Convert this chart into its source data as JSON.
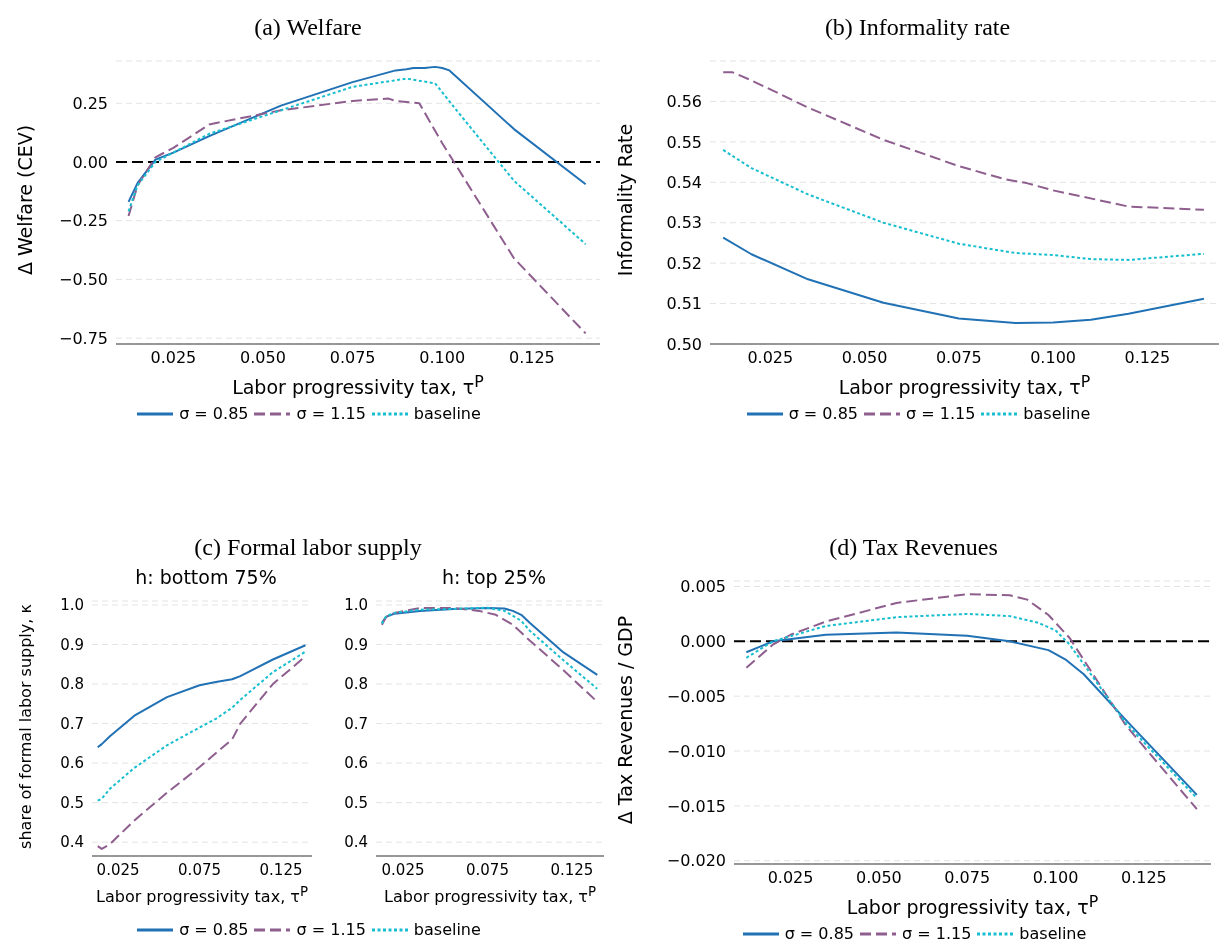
{
  "chart_data": [
    {
      "type": "line",
      "title": "(a) Welfare",
      "xlabel": "Labor progressivity tax, τ$^{P}$",
      "ylabel": "Δ Welfare (CEV)",
      "xlim": [
        0.009,
        0.144
      ],
      "ylim": [
        -0.775,
        0.43
      ],
      "xticks": [
        {
          "value": 0.025,
          "label": "0.025"
        },
        {
          "value": 0.05,
          "label": "0.050"
        },
        {
          "value": 0.075,
          "label": "0.075"
        },
        {
          "value": 0.1,
          "label": "0.100"
        },
        {
          "value": 0.125,
          "label": "0.125"
        }
      ],
      "yticks": [
        {
          "value": -0.75,
          "label": "−0.75"
        },
        {
          "value": -0.5,
          "label": "−0.50"
        },
        {
          "value": -0.25,
          "label": "−0.25"
        },
        {
          "value": 0,
          "label": "0.00"
        },
        {
          "value": 0.25,
          "label": "0.25"
        }
      ],
      "grid": "y",
      "legend": "bottom",
      "ref_lines": [
        {
          "axis": "y",
          "value": 0,
          "color": "#000000",
          "line_style": "dashed"
        }
      ],
      "series": [
        {
          "name": "σ = 0.85",
          "color": "#2171b5",
          "line_style": "solid",
          "x": [
            0.0125,
            0.015,
            0.0175,
            0.02,
            0.025,
            0.035,
            0.055,
            0.075,
            0.087,
            0.09,
            0.092,
            0.095,
            0.098,
            0.1,
            0.102,
            0.12,
            0.14
          ],
          "values": [
            -0.17,
            -0.09,
            -0.04,
            0.01,
            0.04,
            0.11,
            0.24,
            0.34,
            0.39,
            0.395,
            0.4,
            0.4,
            0.405,
            0.4,
            0.39,
            0.14,
            -0.095
          ]
        },
        {
          "name": "σ = 1.15",
          "color": "#8e5e8e",
          "line_style": "dashed",
          "x": [
            0.0125,
            0.015,
            0.02,
            0.025,
            0.035,
            0.055,
            0.075,
            0.085,
            0.087,
            0.0936,
            0.1,
            0.12,
            0.14
          ],
          "values": [
            -0.23,
            -0.1,
            0.02,
            0.06,
            0.16,
            0.22,
            0.26,
            0.27,
            0.26,
            0.25,
            0.08,
            -0.41,
            -0.73
          ]
        },
        {
          "name": "baseline",
          "color": "#17becf",
          "line_style": "dotted",
          "x": [
            0.0125,
            0.015,
            0.02,
            0.025,
            0.035,
            0.055,
            0.075,
            0.09,
            0.098,
            0.104,
            0.12,
            0.14
          ],
          "values": [
            -0.21,
            -0.1,
            0.0,
            0.04,
            0.12,
            0.22,
            0.32,
            0.355,
            0.335,
            0.22,
            -0.08,
            -0.35
          ]
        }
      ]
    },
    {
      "type": "line",
      "title": "(b) Informality rate",
      "xlabel": "Labor progressivity tax, τ$^{P}$",
      "ylabel": "Informality Rate",
      "xlim": [
        0.009,
        0.144
      ],
      "ylim": [
        0.5,
        0.57
      ],
      "xticks": [
        {
          "value": 0.025,
          "label": "0.025"
        },
        {
          "value": 0.05,
          "label": "0.050"
        },
        {
          "value": 0.075,
          "label": "0.075"
        },
        {
          "value": 0.1,
          "label": "0.100"
        },
        {
          "value": 0.125,
          "label": "0.125"
        }
      ],
      "yticks": [
        {
          "value": 0.5,
          "label": "0.50"
        },
        0.51,
        0.52,
        0.53,
        0.54,
        0.55,
        0.56
      ],
      "grid": "y",
      "legend": "bottom",
      "series": [
        {
          "name": "σ = 0.85",
          "color": "#2171b5",
          "line_style": "solid",
          "x": [
            0.0125,
            0.02,
            0.035,
            0.055,
            0.075,
            0.09,
            0.1,
            0.11,
            0.12,
            0.14
          ],
          "values": [
            0.5263,
            0.5222,
            0.516,
            0.5102,
            0.5063,
            0.5052,
            0.5053,
            0.506,
            0.5075,
            0.5112
          ]
        },
        {
          "name": "σ = 1.15",
          "color": "#8e5e8e",
          "line_style": "dashed",
          "x": [
            0.0125,
            0.015,
            0.02,
            0.035,
            0.055,
            0.075,
            0.087,
            0.093,
            0.1,
            0.12,
            0.14
          ],
          "values": [
            0.5672,
            0.5672,
            0.5652,
            0.5585,
            0.5505,
            0.544,
            0.5408,
            0.5398,
            0.538,
            0.534,
            0.5332
          ]
        },
        {
          "name": "baseline",
          "color": "#17becf",
          "line_style": "dotted",
          "x": [
            0.0125,
            0.02,
            0.035,
            0.055,
            0.075,
            0.09,
            0.1,
            0.11,
            0.12,
            0.14
          ],
          "values": [
            0.548,
            0.5435,
            0.537,
            0.53,
            0.5248,
            0.5225,
            0.522,
            0.521,
            0.5208,
            0.5223
          ]
        }
      ]
    },
    {
      "type": "line",
      "title": "(c) Formal labor supply",
      "subtitle": "h: bottom 75%",
      "xlabel": "Labor progressivity tax, τ$^{P}$",
      "ylabel": "share of formal labor supply, κ",
      "xlim": [
        0.009,
        0.144
      ],
      "ylim": [
        0.365,
        1.01
      ],
      "xticks": [
        0.025,
        0.075,
        0.125
      ],
      "yticks": [
        0.4,
        0.5,
        0.6,
        0.7,
        0.8,
        0.9,
        {
          "value": 1,
          "label": "1.0"
        }
      ],
      "grid": "y",
      "legend": "bottom",
      "series": [
        {
          "name": "σ = 0.85",
          "color": "#2171b5",
          "line_style": "solid",
          "x": [
            0.0125,
            0.015,
            0.02,
            0.035,
            0.055,
            0.075,
            0.085,
            0.095,
            0.1,
            0.12,
            0.14
          ],
          "values": [
            0.64,
            0.648,
            0.668,
            0.72,
            0.767,
            0.797,
            0.805,
            0.812,
            0.82,
            0.862,
            0.898
          ]
        },
        {
          "name": "σ = 1.15",
          "color": "#8e5e8e",
          "line_style": "dashed",
          "x": [
            0.0125,
            0.015,
            0.02,
            0.035,
            0.055,
            0.075,
            0.095,
            0.1,
            0.12,
            0.14
          ],
          "values": [
            0.39,
            0.383,
            0.395,
            0.455,
            0.525,
            0.59,
            0.66,
            0.7,
            0.8,
            0.87
          ]
        },
        {
          "name": "baseline",
          "color": "#17becf",
          "line_style": "dotted",
          "x": [
            0.0125,
            0.015,
            0.02,
            0.035,
            0.055,
            0.075,
            0.085,
            0.095,
            0.1,
            0.12,
            0.14
          ],
          "values": [
            0.505,
            0.51,
            0.535,
            0.588,
            0.645,
            0.69,
            0.712,
            0.74,
            0.76,
            0.83,
            0.882
          ]
        }
      ]
    },
    {
      "type": "line",
      "subtitle": "h: top 25%",
      "xlabel": "Labor progressivity tax, τ$^{P}$",
      "xlim": [
        0.009,
        0.144
      ],
      "ylim": [
        0.365,
        1.01
      ],
      "xticks": [
        0.025,
        0.075,
        0.125
      ],
      "yticks": [
        0.4,
        0.5,
        0.6,
        0.7,
        0.8,
        0.9,
        {
          "value": 1,
          "label": "1.0"
        }
      ],
      "grid": "y",
      "series": [
        {
          "color": "#2171b5",
          "line_style": "solid",
          "x": [
            0.0125,
            0.015,
            0.02,
            0.035,
            0.055,
            0.075,
            0.085,
            0.09,
            0.095,
            0.1,
            0.12,
            0.14
          ],
          "values": [
            0.955,
            0.97,
            0.978,
            0.985,
            0.99,
            0.992,
            0.991,
            0.985,
            0.975,
            0.955,
            0.88,
            0.823
          ]
        },
        {
          "color": "#8e5e8e",
          "line_style": "dashed",
          "x": [
            0.0125,
            0.015,
            0.02,
            0.035,
            0.055,
            0.07,
            0.08,
            0.09,
            0.1,
            0.12,
            0.14
          ],
          "values": [
            0.95,
            0.97,
            0.98,
            0.992,
            0.992,
            0.985,
            0.975,
            0.95,
            0.91,
            0.835,
            0.755
          ]
        },
        {
          "color": "#17becf",
          "line_style": "dotted",
          "x": [
            0.0125,
            0.015,
            0.02,
            0.035,
            0.055,
            0.075,
            0.085,
            0.095,
            0.1,
            0.12,
            0.14
          ],
          "values": [
            0.953,
            0.972,
            0.98,
            0.988,
            0.99,
            0.993,
            0.985,
            0.96,
            0.935,
            0.86,
            0.788
          ]
        }
      ]
    },
    {
      "type": "line",
      "title": "(d) Tax Revenues",
      "xlabel": "Labor progressivity tax, τ$^{P}$",
      "ylabel": "Δ Tax Revenues / GDP",
      "xlim": [
        0.009,
        0.144
      ],
      "ylim": [
        -0.0203,
        0.0055
      ],
      "xticks": [
        {
          "value": 0.025,
          "label": "0.025"
        },
        {
          "value": 0.05,
          "label": "0.050"
        },
        {
          "value": 0.075,
          "label": "0.075"
        },
        {
          "value": 0.1,
          "label": "0.100"
        },
        {
          "value": 0.125,
          "label": "0.125"
        }
      ],
      "yticks": [
        {
          "value": -0.02,
          "label": "−0.020"
        },
        {
          "value": -0.015,
          "label": "−0.015"
        },
        {
          "value": -0.01,
          "label": "−0.010"
        },
        {
          "value": -0.005,
          "label": "−0.005"
        },
        {
          "value": 0,
          "label": "0.000"
        },
        0.005
      ],
      "grid": "y",
      "legend": "bottom",
      "ref_lines": [
        {
          "axis": "y",
          "value": 0,
          "color": "#000000",
          "line_style": "dashed"
        }
      ],
      "series": [
        {
          "name": "σ = 0.85",
          "color": "#2171b5",
          "line_style": "solid",
          "x": [
            0.0125,
            0.02,
            0.035,
            0.055,
            0.075,
            0.087,
            0.098,
            0.103,
            0.108,
            0.12,
            0.14
          ],
          "values": [
            -0.001,
            0.0,
            0.0006,
            0.0008,
            0.0005,
            0.0,
            -0.0008,
            -0.0017,
            -0.003,
            -0.0072,
            -0.014
          ]
        },
        {
          "name": "σ = 1.15",
          "color": "#8e5e8e",
          "line_style": "dashed",
          "x": [
            0.0125,
            0.02,
            0.025,
            0.035,
            0.055,
            0.075,
            0.087,
            0.092,
            0.098,
            0.104,
            0.12,
            0.14
          ],
          "values": [
            -0.0024,
            -0.0003,
            0.0006,
            0.0018,
            0.0035,
            0.0043,
            0.0042,
            0.0038,
            0.0024,
            0.0003,
            -0.0077,
            -0.0153
          ]
        },
        {
          "name": "baseline",
          "color": "#17becf",
          "line_style": "dotted",
          "x": [
            0.0125,
            0.02,
            0.035,
            0.055,
            0.075,
            0.087,
            0.095,
            0.1,
            0.104,
            0.12,
            0.14
          ],
          "values": [
            -0.0015,
            0.0,
            0.0014,
            0.0022,
            0.0025,
            0.0023,
            0.0017,
            0.001,
            -0.0003,
            -0.0075,
            -0.0143
          ]
        }
      ]
    }
  ]
}
